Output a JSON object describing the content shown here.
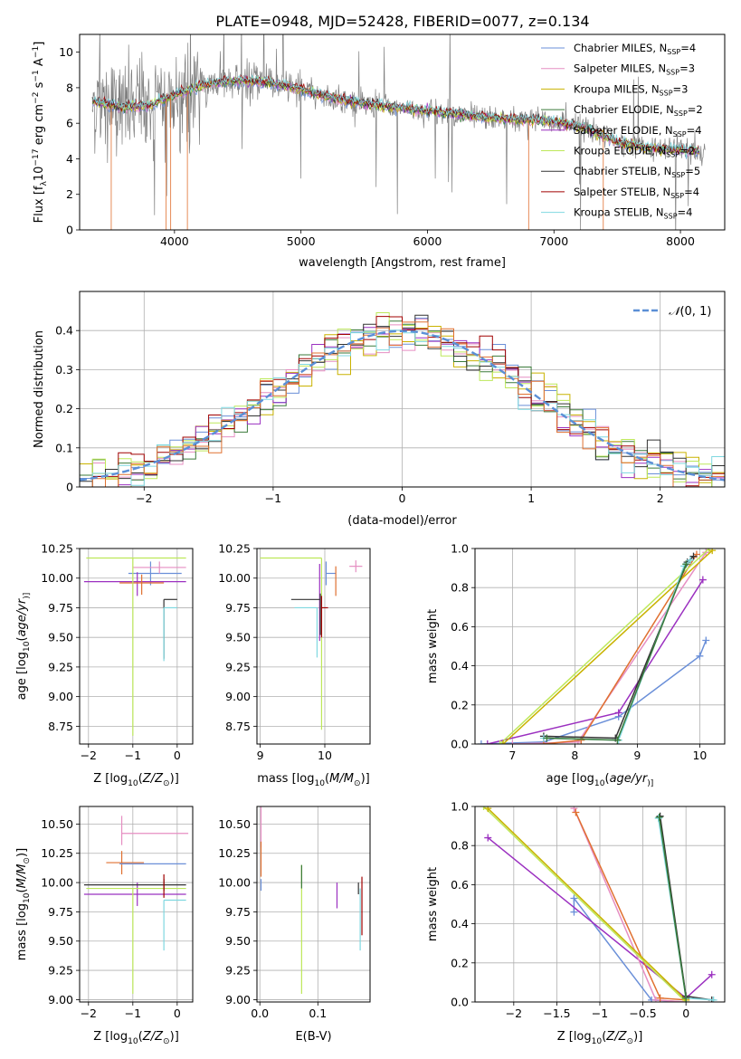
{
  "figure": {
    "title": "PLATE=0948, MJD=52428, FIBERID=0077, z=0.134"
  },
  "chart_data": [
    {
      "id": "spectrum",
      "type": "line",
      "xlabel": "wavelength [Angstrom, rest frame]",
      "ylabel_parts": [
        "Flux [f",
        "λ",
        "10",
        "−17",
        " erg cm",
        "−2",
        " s",
        "−1",
        " A",
        "−1",
        "]"
      ],
      "xlim": [
        3250,
        8350
      ],
      "ylim": [
        0,
        11
      ],
      "xticks": [
        4000,
        5000,
        6000,
        7000,
        8000
      ],
      "yticks": [
        0,
        2,
        4,
        6,
        8,
        10
      ],
      "grid": false,
      "legend_position": "top-right",
      "legend": [
        {
          "name": "Chabrier MILES",
          "n": 4,
          "color": "#6a8fd8"
        },
        {
          "name": "Salpeter MILES",
          "n": 3,
          "color": "#e68ec2"
        },
        {
          "name": "Kroupa MILES",
          "n": 3,
          "color": "#c9b200"
        },
        {
          "name": "Chabrier ELODIE",
          "n": 2,
          "color": "#3a7a3a"
        },
        {
          "name": "Salpeter ELODIE",
          "n": 4,
          "color": "#9b30c0"
        },
        {
          "name": "Kroupa ELODIE",
          "n": 2,
          "color": "#bde85a"
        },
        {
          "name": "Chabrier STELIB",
          "n": 5,
          "color": "#333333"
        },
        {
          "name": "Salpeter STELIB",
          "n": 4,
          "color": "#a00000"
        },
        {
          "name": "Kroupa STELIB",
          "n": 4,
          "color": "#7fd8e0"
        }
      ],
      "nssp_label": "N",
      "nssp_sub": "SSP",
      "data_color": "#808080",
      "model_x": [
        3350,
        3600,
        3800,
        4000,
        4250,
        4500,
        4750,
        5000,
        5250,
        5500,
        5750,
        6000,
        6250,
        6500,
        6750,
        7000,
        7250,
        7500,
        7750,
        8000,
        8200
      ],
      "model_y": [
        7.2,
        6.9,
        7.0,
        7.6,
        8.2,
        8.4,
        8.3,
        7.9,
        7.4,
        7.1,
        6.9,
        6.7,
        6.5,
        6.3,
        6.2,
        6.1,
        5.7,
        4.9,
        4.6,
        4.5,
        4.4
      ]
    },
    {
      "id": "residuals",
      "type": "histogram",
      "xlabel": "(data-model)/error",
      "ylabel": "Normed distribution",
      "xlim": [
        -2.5,
        2.5
      ],
      "ylim": [
        0,
        0.5
      ],
      "xticks": [
        -2,
        -1,
        0,
        1,
        2
      ],
      "yticks": [
        0.0,
        0.1,
        0.2,
        0.3,
        0.4
      ],
      "grid": true,
      "legend_position": "top-right",
      "legend": [
        {
          "name_parts": [
            "𝒩",
            "(0, 1)"
          ],
          "color": "#5b8fd6",
          "style": "dashed"
        }
      ],
      "bin_width": 0.1
    },
    {
      "id": "age-Z",
      "type": "errorbar",
      "xlabel_parts": [
        "Z [log",
        "10",
        "(",
        "Z/Z",
        "⊙",
        ")]"
      ],
      "ylabel_parts": [
        "age  [log",
        "10",
        "(",
        "age/yr",
        ")]"
      ],
      "xlim": [
        -2.2,
        0.35
      ],
      "ylim": [
        8.6,
        10.25
      ],
      "xticks": [
        -2,
        -1,
        0
      ],
      "yticks": [
        8.75,
        9.0,
        9.25,
        9.5,
        9.75,
        10.0,
        10.25
      ],
      "grid": true,
      "points": [
        {
          "x": -0.6,
          "y": 10.04,
          "xerr": [
            0.5,
            0.7
          ],
          "yerr": [
            0.1,
            0.1
          ],
          "color": "#6a8fd8"
        },
        {
          "x": -0.4,
          "y": 10.09,
          "xerr": [
            0.6,
            0.6
          ],
          "yerr": [
            0.05,
            0.05
          ],
          "color": "#e68ec2"
        },
        {
          "x": -0.9,
          "y": 9.97,
          "xerr": [
            1.2,
            1.1
          ],
          "yerr": [
            0.12,
            0.08
          ],
          "color": "#9b30c0"
        },
        {
          "x": -0.8,
          "y": 9.96,
          "xerr": [
            0.5,
            0.5
          ],
          "yerr": [
            0.1,
            0.07
          ],
          "color": "#e07030"
        },
        {
          "x": -1.0,
          "y": 10.17,
          "xerr": [
            1.05,
            1.2
          ],
          "yerr": [
            1.5,
            0.0
          ],
          "color": "#bde85a"
        },
        {
          "x": -0.3,
          "y": 9.82,
          "xerr": [
            0.0,
            0.3
          ],
          "yerr": [
            0.5,
            0.0
          ],
          "color": "#333333"
        },
        {
          "x": -0.3,
          "y": 9.75,
          "xerr": [
            0.0,
            0.3
          ],
          "yerr": [
            0.45,
            0.0
          ],
          "color": "#7fd8e0"
        }
      ]
    },
    {
      "id": "age-mass",
      "type": "errorbar",
      "xlabel_parts": [
        "mass [log",
        "10",
        "(",
        "M/M",
        "⊙",
        ")]"
      ],
      "ylabel_parts": [],
      "xlim": [
        8.95,
        10.7
      ],
      "ylim": [
        8.6,
        10.25
      ],
      "xticks": [
        9,
        10
      ],
      "yticks": [
        8.75,
        9.0,
        9.25,
        9.5,
        9.75,
        10.0,
        10.25
      ],
      "grid": true,
      "points": [
        {
          "x": 10.02,
          "y": 10.04,
          "xerr": [
            0.0,
            0.15
          ],
          "yerr": [
            0.1,
            0.1
          ],
          "color": "#6a8fd8"
        },
        {
          "x": 10.48,
          "y": 10.1,
          "xerr": [
            0.1,
            0.1
          ],
          "yerr": [
            0.05,
            0.05
          ],
          "color": "#e68ec2"
        },
        {
          "x": 9.95,
          "y": 10.17,
          "xerr": [
            0.95,
            0.0
          ],
          "yerr": [
            1.45,
            0.0
          ],
          "color": "#bde85a"
        },
        {
          "x": 9.92,
          "y": 9.97,
          "xerr": [
            0.0,
            0.0
          ],
          "yerr": [
            0.5,
            0.15
          ],
          "color": "#9b30c0"
        },
        {
          "x": 9.93,
          "y": 9.82,
          "xerr": [
            0.45,
            0.0
          ],
          "yerr": [
            0.3,
            0.05
          ],
          "color": "#333333"
        },
        {
          "x": 9.95,
          "y": 9.75,
          "xerr": [
            0.0,
            0.1
          ],
          "yerr": [
            0.25,
            0.1
          ],
          "color": "#a00000"
        },
        {
          "x": 9.88,
          "y": 9.75,
          "xerr": [
            0.35,
            0.0
          ],
          "yerr": [
            0.42,
            0.0
          ],
          "color": "#7fd8e0"
        },
        {
          "x": 10.17,
          "y": 10.0,
          "xerr": [
            0.0,
            0.0
          ],
          "yerr": [
            0.15,
            0.1
          ],
          "color": "#e07030"
        }
      ]
    },
    {
      "id": "weight-age",
      "type": "line",
      "xlabel_parts": [
        "age  [log",
        "10",
        "(",
        "age/yr",
        ")]"
      ],
      "ylabel": "mass weight",
      "xlim": [
        6.4,
        10.4
      ],
      "ylim": [
        0,
        1.0
      ],
      "xticks": [
        7,
        8,
        9,
        10
      ],
      "yticks": [
        0.0,
        0.2,
        0.4,
        0.6,
        0.8,
        1.0
      ],
      "grid": true,
      "series": [
        {
          "color": "#6a8fd8",
          "x": [
            6.5,
            7.5,
            8.7,
            10.0,
            10.1
          ],
          "y": [
            0.0,
            0.01,
            0.14,
            0.45,
            0.53
          ]
        },
        {
          "color": "#9b30c0",
          "x": [
            6.6,
            8.7,
            10.05
          ],
          "y": [
            0.0,
            0.16,
            0.84
          ]
        },
        {
          "color": "#e68ec2",
          "x": [
            7.0,
            8.05,
            10.1
          ],
          "y": [
            0.0,
            0.01,
            0.98
          ]
        },
        {
          "color": "#e07030",
          "x": [
            7.5,
            8.1,
            9.95
          ],
          "y": [
            0.0,
            0.02,
            0.97
          ]
        },
        {
          "color": "#bde85a",
          "x": [
            6.8,
            10.15
          ],
          "y": [
            0.0,
            1.0
          ]
        },
        {
          "color": "#c9b200",
          "x": [
            6.85,
            10.2
          ],
          "y": [
            0.0,
            0.99
          ]
        },
        {
          "color": "#333333",
          "x": [
            7.5,
            8.65,
            9.8,
            9.9
          ],
          "y": [
            0.04,
            0.03,
            0.93,
            0.96
          ]
        },
        {
          "color": "#7fd8e0",
          "x": [
            7.5,
            8.7,
            9.75,
            9.85
          ],
          "y": [
            0.03,
            0.02,
            0.91,
            0.94
          ]
        },
        {
          "color": "#3a7a3a",
          "x": [
            7.55,
            8.68,
            9.78
          ],
          "y": [
            0.03,
            0.02,
            0.92
          ]
        }
      ]
    },
    {
      "id": "mass-Z",
      "type": "errorbar",
      "xlabel_parts": [
        "Z [log",
        "10",
        "(",
        "Z/Z",
        "⊙",
        ")]"
      ],
      "ylabel_parts": [
        "mass [log",
        "10",
        "(",
        "M/M",
        "⊙",
        ")]"
      ],
      "xlim": [
        -2.2,
        0.35
      ],
      "ylim": [
        8.98,
        10.65
      ],
      "xticks": [
        -2,
        -1,
        0
      ],
      "yticks": [
        9.0,
        9.25,
        9.5,
        9.75,
        10.0,
        10.25,
        10.5
      ],
      "grid": true,
      "points": [
        {
          "x": -1.25,
          "y": 10.42,
          "xerr": [
            0.0,
            1.5
          ],
          "yerr": [
            0.1,
            0.15
          ],
          "color": "#e68ec2"
        },
        {
          "x": -1.25,
          "y": 10.17,
          "xerr": [
            0.35,
            0.5
          ],
          "yerr": [
            0.1,
            0.1
          ],
          "color": "#e07030"
        },
        {
          "x": -0.8,
          "y": 10.16,
          "xerr": [
            0.5,
            1.0
          ],
          "yerr": [
            0.0,
            0.0
          ],
          "color": "#6a8fd8"
        },
        {
          "x": -0.9,
          "y": 9.9,
          "xerr": [
            1.2,
            1.1
          ],
          "yerr": [
            0.1,
            0.1
          ],
          "color": "#9b30c0"
        },
        {
          "x": -1.0,
          "y": 9.95,
          "xerr": [
            1.05,
            1.2
          ],
          "yerr": [
            0.9,
            0.0
          ],
          "color": "#bde85a"
        },
        {
          "x": -0.3,
          "y": 9.98,
          "xerr": [
            1.8,
            0.5
          ],
          "yerr": [
            0.05,
            0.05
          ],
          "color": "#333333"
        },
        {
          "x": -0.3,
          "y": 9.85,
          "xerr": [
            0.0,
            0.5
          ],
          "yerr": [
            0.43,
            0.0
          ],
          "color": "#7fd8e0"
        },
        {
          "x": -0.3,
          "y": 9.97,
          "xerr": [
            0.0,
            0.0
          ],
          "yerr": [
            0.1,
            0.1
          ],
          "color": "#a00000"
        }
      ]
    },
    {
      "id": "mass-ebv",
      "type": "errorbar",
      "xlabel": "E(B-V)",
      "ylabel_parts": [],
      "xlim": [
        -0.005,
        0.19
      ],
      "ylim": [
        8.98,
        10.65
      ],
      "xticks": [
        0.0,
        0.1
      ],
      "yticks": [
        9.0,
        9.25,
        9.5,
        9.75,
        10.0,
        10.25,
        10.5
      ],
      "grid": true,
      "points": [
        {
          "x": 0.002,
          "y": 10.4,
          "xerr": [
            0.0,
            0.0
          ],
          "yerr": [
            0.1,
            0.25
          ],
          "color": "#e68ec2"
        },
        {
          "x": 0.002,
          "y": 10.2,
          "xerr": [
            0.0,
            0.0
          ],
          "yerr": [
            0.15,
            0.15
          ],
          "color": "#e07030"
        },
        {
          "x": 0.002,
          "y": 9.98,
          "xerr": [
            0.0,
            0.0
          ],
          "yerr": [
            0.05,
            0.05
          ],
          "color": "#6a8fd8"
        },
        {
          "x": 0.072,
          "y": 9.95,
          "xerr": [
            0.0,
            0.0
          ],
          "yerr": [
            0.9,
            0.2
          ],
          "color": "#bde85a"
        },
        {
          "x": 0.072,
          "y": 10.0,
          "xerr": [
            0.0,
            0.0
          ],
          "yerr": [
            0.05,
            0.15
          ],
          "color": "#3a7a3a"
        },
        {
          "x": 0.133,
          "y": 9.9,
          "xerr": [
            0.0,
            0.0
          ],
          "yerr": [
            0.12,
            0.1
          ],
          "color": "#9b30c0"
        },
        {
          "x": 0.173,
          "y": 9.85,
          "xerr": [
            0.0,
            0.0
          ],
          "yerr": [
            0.43,
            0.1
          ],
          "color": "#7fd8e0"
        },
        {
          "x": 0.176,
          "y": 9.85,
          "xerr": [
            0.0,
            0.0
          ],
          "yerr": [
            0.3,
            0.2
          ],
          "color": "#a00000"
        },
        {
          "x": 0.17,
          "y": 9.95,
          "xerr": [
            0.0,
            0.0
          ],
          "yerr": [
            0.05,
            0.05
          ],
          "color": "#333333"
        }
      ]
    },
    {
      "id": "weight-Z",
      "type": "line",
      "xlabel_parts": [
        "Z [log",
        "10",
        "(",
        "Z/Z",
        "⊙",
        ")]"
      ],
      "ylabel": "mass weight",
      "xlim": [
        -2.45,
        0.45
      ],
      "ylim": [
        0,
        1.0
      ],
      "xticks": [
        -2.0,
        -1.5,
        -1.0,
        -0.5,
        0.0
      ],
      "yticks": [
        0.0,
        0.2,
        0.4,
        0.6,
        0.8,
        1.0
      ],
      "grid": true,
      "series": [
        {
          "color": "#6a8fd8",
          "x": [
            -1.3,
            -1.3,
            -0.4,
            0.0
          ],
          "y": [
            0.46,
            0.53,
            0.01,
            0.0
          ]
        },
        {
          "color": "#9b30c0",
          "x": [
            -2.3,
            0.0,
            0.3
          ],
          "y": [
            0.84,
            0.02,
            0.14
          ]
        },
        {
          "color": "#e68ec2",
          "x": [
            -1.3,
            -0.35,
            0.0
          ],
          "y": [
            0.99,
            0.01,
            0.0
          ]
        },
        {
          "color": "#e07030",
          "x": [
            -1.28,
            -0.3,
            0.0
          ],
          "y": [
            0.97,
            0.02,
            0.01
          ]
        },
        {
          "color": "#bde85a",
          "x": [
            -2.35,
            0.0
          ],
          "y": [
            1.0,
            0.0
          ]
        },
        {
          "color": "#c9b200",
          "x": [
            -2.3,
            0.0
          ],
          "y": [
            0.99,
            0.01
          ]
        },
        {
          "color": "#333333",
          "x": [
            -0.3,
            0.0,
            0.3
          ],
          "y": [
            0.95,
            0.03,
            0.01
          ]
        },
        {
          "color": "#7fd8e0",
          "x": [
            -0.32,
            0.0,
            0.32
          ],
          "y": [
            0.94,
            0.02,
            0.01
          ]
        },
        {
          "color": "#3a7a3a",
          "x": [
            -0.31,
            0.0
          ],
          "y": [
            0.945,
            0.02
          ]
        }
      ]
    }
  ]
}
